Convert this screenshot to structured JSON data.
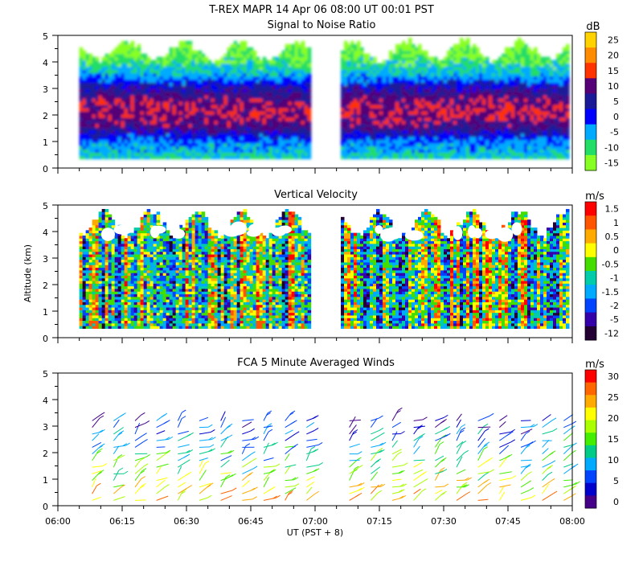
{
  "figure": {
    "title": "T-REX  MAPR 14 Apr 06  08:00 UT  00:01  PST",
    "xlabel": "UT  (PST + 8)",
    "ylabel": "Altitude (km)",
    "xticks": [
      "06:00",
      "06:15",
      "06:30",
      "06:45",
      "07:00",
      "07:15",
      "07:30",
      "07:45",
      "08:00"
    ]
  },
  "chart_data": [
    {
      "type": "heatmap",
      "title": "Signal to Noise Ratio",
      "units": "dB",
      "x_range": [
        "06:00",
        "08:00"
      ],
      "ylim": [
        0,
        5
      ],
      "yticks": [
        0,
        1,
        2,
        3,
        4,
        5
      ],
      "data_gap": [
        "06:59",
        "07:06"
      ],
      "colorbar": {
        "labels": [
          "25",
          "20",
          "15",
          "10",
          "5",
          "0",
          "-5",
          "-10",
          "-15"
        ],
        "colors": [
          "#ffd200",
          "#ff8c00",
          "#ff3300",
          "#550077",
          "#1a1a99",
          "#0000ff",
          "#00aaff",
          "#22dd66",
          "#88ff22"
        ]
      },
      "profile": [
        {
          "altitude_km": 0.4,
          "snr_db": -8
        },
        {
          "altitude_km": 1.0,
          "snr_db": -2
        },
        {
          "altitude_km": 1.5,
          "snr_db": 8
        },
        {
          "altitude_km": 2.0,
          "snr_db": 12
        },
        {
          "altitude_km": 2.5,
          "snr_db": 10
        },
        {
          "altitude_km": 3.0,
          "snr_db": 4
        },
        {
          "altitude_km": 3.5,
          "snr_db": -6
        },
        {
          "altitude_km": 4.0,
          "snr_db": -11
        },
        {
          "altitude_km": 4.5,
          "snr_db": -15
        }
      ]
    },
    {
      "type": "heatmap",
      "title": "Vertical Velocity",
      "units": "m/s",
      "x_range": [
        "06:00",
        "08:00"
      ],
      "ylim": [
        0,
        5
      ],
      "yticks": [
        0,
        1,
        2,
        3,
        4,
        5
      ],
      "data_gap": [
        "06:59",
        "07:06"
      ],
      "colorbar": {
        "labels": [
          "1.5",
          "1",
          "0.5",
          "0",
          "-0.5",
          "-1",
          "-1.5",
          "-2",
          "-5",
          "-12"
        ],
        "colors": [
          "#ff0000",
          "#ff5500",
          "#ffaa00",
          "#ffff00",
          "#44dd00",
          "#00ccaa",
          "#00aaff",
          "#0044ff",
          "#3300aa",
          "#220033"
        ]
      }
    },
    {
      "type": "scatter",
      "title": "FCA 5 Minute Averaged Winds",
      "units": "m/s",
      "x_range": [
        "06:00",
        "08:00"
      ],
      "ylim": [
        0,
        5
      ],
      "yticks": [
        0,
        1,
        2,
        3,
        4,
        5
      ],
      "interval_minutes": 5,
      "colorbar": {
        "labels": [
          "30",
          "25",
          "20",
          "15",
          "10",
          "5",
          "0"
        ],
        "colors": [
          "#ff0000",
          "#ff6600",
          "#ffaa00",
          "#ffff00",
          "#aaff00",
          "#44ee00",
          "#00cc88",
          "#00aaff",
          "#0044ff",
          "#0000cc",
          "#440088"
        ]
      }
    }
  ]
}
